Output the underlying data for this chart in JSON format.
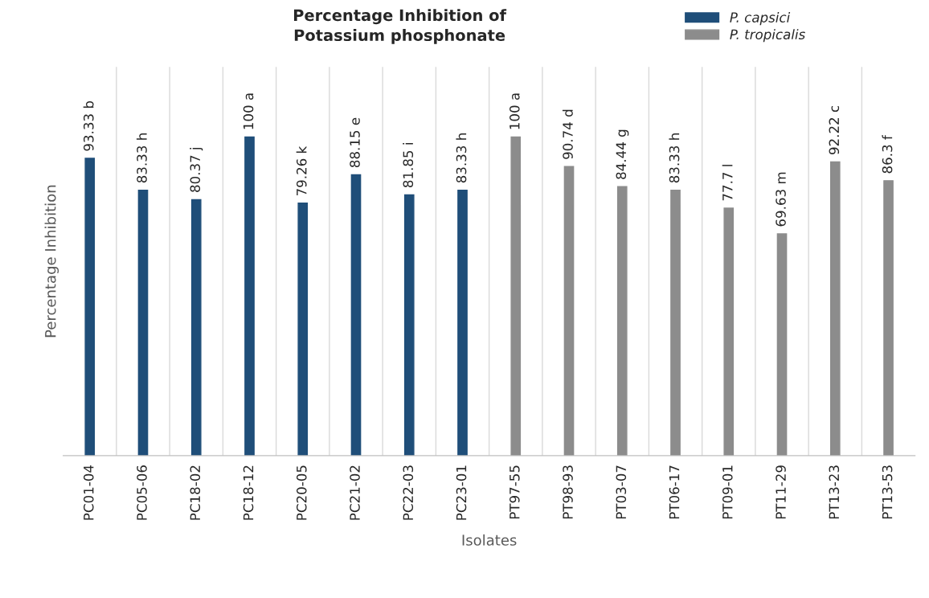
{
  "chart_data": {
    "type": "bar",
    "title": "Percentage Inhibition of\nPotassium phosphonate",
    "xlabel": "Isolates",
    "ylabel": "Percentage Inhibition",
    "categories": [
      "PC01-04",
      "PC05-06",
      "PC18-02",
      "PC18-12",
      "PC20-05",
      "PC21-02",
      "PC22-03",
      "PC23-01",
      "PT97-55",
      "PT98-93",
      "PT03-07",
      "PT06-17",
      "PT09-01",
      "PT11-29",
      "PT13-23",
      "PT13-53"
    ],
    "series": [
      {
        "name": "P. capsici",
        "color": "#1f4e79",
        "values": [
          93.33,
          83.33,
          80.37,
          100,
          79.26,
          88.15,
          81.85,
          83.33,
          null,
          null,
          null,
          null,
          null,
          null,
          null,
          null
        ],
        "value_labels": [
          "93.33 b",
          "83.33 h",
          "80.37 j",
          "100 a",
          "79.26 k",
          "88.15 e",
          "81.85 i",
          "83.33 h",
          null,
          null,
          null,
          null,
          null,
          null,
          null,
          null
        ]
      },
      {
        "name": "P. tropicalis",
        "color": "#8c8c8c",
        "values": [
          null,
          null,
          null,
          null,
          null,
          null,
          null,
          null,
          100,
          90.74,
          84.44,
          83.33,
          77.7,
          69.63,
          92.22,
          86.3
        ],
        "value_labels": [
          null,
          null,
          null,
          null,
          null,
          null,
          null,
          null,
          "100 a",
          "90.74 d",
          "84.44 g",
          "83.33 h",
          "77.7 l",
          "69.63 m",
          "92.22 c",
          "86.3 f"
        ]
      }
    ],
    "ylim": [
      0,
      122
    ],
    "tick_labels": "x",
    "grid": "x",
    "legend": "top right"
  }
}
